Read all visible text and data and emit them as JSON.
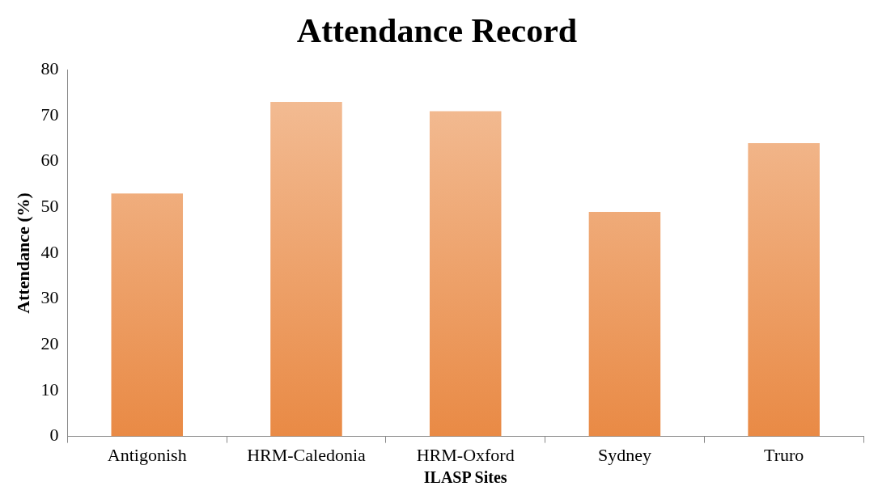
{
  "chart_data": {
    "type": "bar",
    "title": "Attendance Record",
    "xlabel": "ILASP Sites",
    "ylabel": "Attendance (%)",
    "categories": [
      "Antigonish",
      "HRM-Caledonia",
      "HRM-Oxford",
      "Sydney",
      "Truro"
    ],
    "values": [
      53,
      73,
      71,
      49,
      64
    ],
    "color": "#e98a45",
    "ylim": [
      0,
      80
    ],
    "yticks": [
      0,
      10,
      20,
      30,
      40,
      50,
      60,
      70,
      80
    ],
    "grid": false,
    "legend": false
  }
}
